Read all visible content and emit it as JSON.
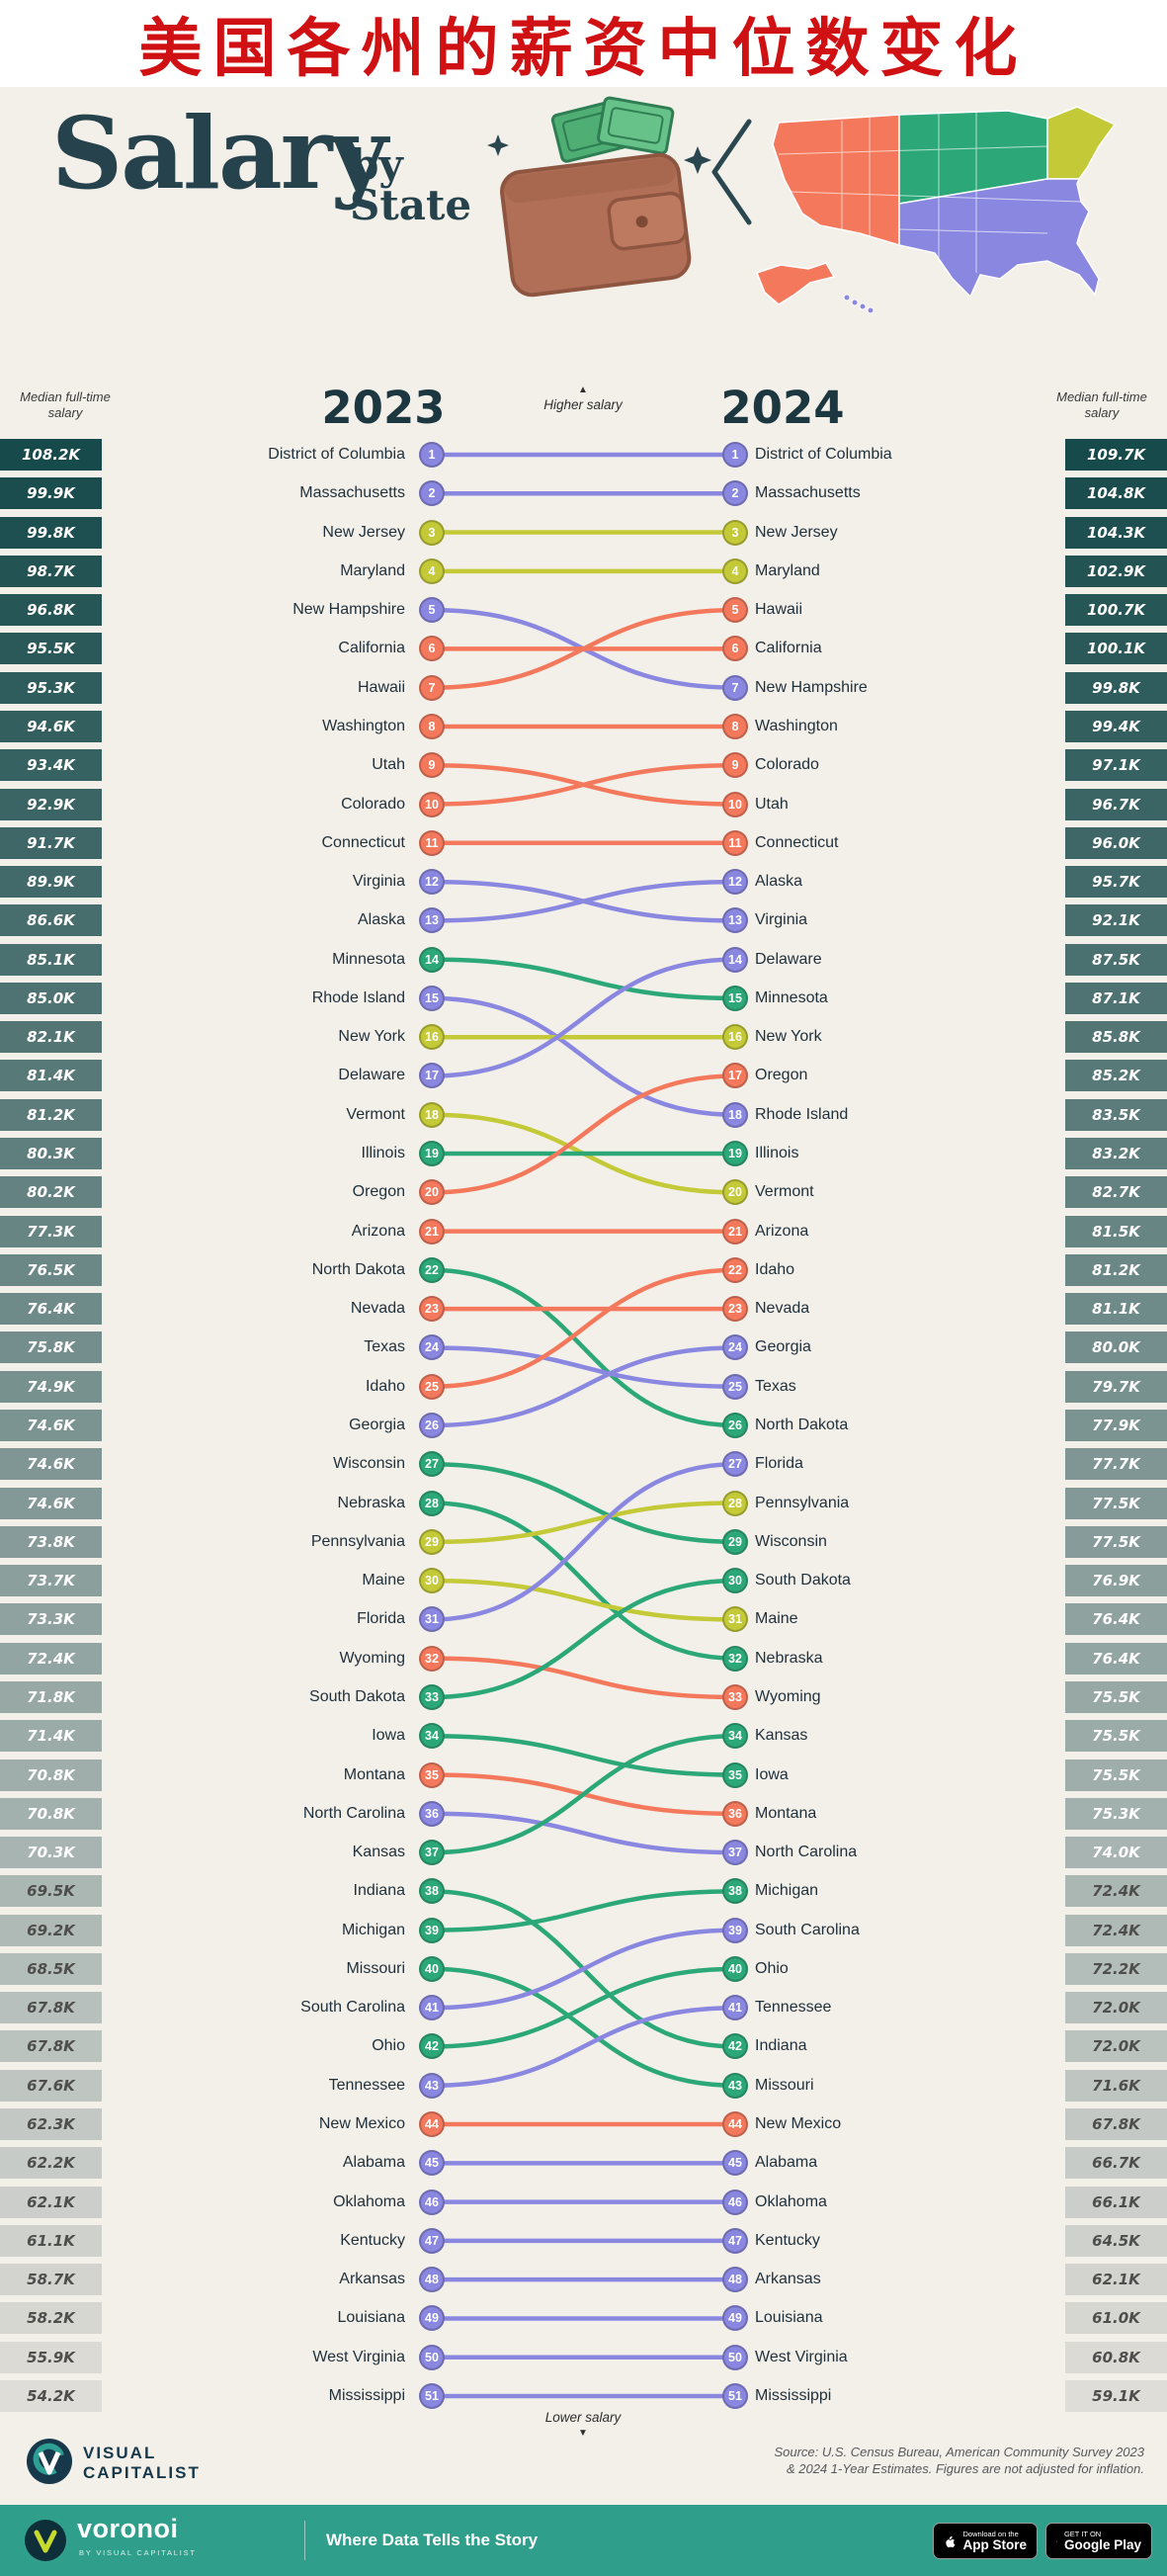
{
  "banner": {
    "title": "美国各州的薪资中位数变化"
  },
  "header": {
    "title_main": "Salary",
    "title_by": "by",
    "title_state": "State",
    "year_left": "2023",
    "year_right": "2024",
    "left_axis_label": "Median full-time salary",
    "right_axis_label": "Median full-time salary"
  },
  "chart_notes": {
    "higher": "Higher salary",
    "lower": "Lower salary",
    "arrow_up": "▲",
    "arrow_down": "▼"
  },
  "chart_data": {
    "type": "slope-rank",
    "title": "Salary by State",
    "unit": "USD, median full-time salary",
    "columns": [
      "2023",
      "2024"
    ],
    "palette": {
      "purple": "#8a87e0",
      "yellow": "#c3c937",
      "green": "#2ca878",
      "coral": "#f4795c"
    },
    "box_gradient": {
      "high": "#174a4b",
      "low": "#dfddd8"
    },
    "box_text": {
      "on_dark": "#ffffff",
      "on_light": "#4e4e4c"
    },
    "states": [
      {
        "name": "District of Columbia",
        "rank_2023": 1,
        "salary_2023": "108.2K",
        "rank_2024": 1,
        "salary_2024": "109.7K",
        "group": "purple"
      },
      {
        "name": "Massachusetts",
        "rank_2023": 2,
        "salary_2023": "99.9K",
        "rank_2024": 2,
        "salary_2024": "104.8K",
        "group": "purple"
      },
      {
        "name": "New Jersey",
        "rank_2023": 3,
        "salary_2023": "99.8K",
        "rank_2024": 3,
        "salary_2024": "104.3K",
        "group": "yellow"
      },
      {
        "name": "Maryland",
        "rank_2023": 4,
        "salary_2023": "98.7K",
        "rank_2024": 4,
        "salary_2024": "102.9K",
        "group": "yellow"
      },
      {
        "name": "New Hampshire",
        "rank_2023": 5,
        "salary_2023": "96.8K",
        "rank_2024": 7,
        "salary_2024": "99.8K",
        "group": "purple"
      },
      {
        "name": "California",
        "rank_2023": 6,
        "salary_2023": "95.5K",
        "rank_2024": 6,
        "salary_2024": "100.1K",
        "group": "coral"
      },
      {
        "name": "Hawaii",
        "rank_2023": 7,
        "salary_2023": "95.3K",
        "rank_2024": 5,
        "salary_2024": "100.7K",
        "group": "coral"
      },
      {
        "name": "Washington",
        "rank_2023": 8,
        "salary_2023": "94.6K",
        "rank_2024": 8,
        "salary_2024": "99.4K",
        "group": "coral"
      },
      {
        "name": "Utah",
        "rank_2023": 9,
        "salary_2023": "93.4K",
        "rank_2024": 10,
        "salary_2024": "96.7K",
        "group": "coral"
      },
      {
        "name": "Colorado",
        "rank_2023": 10,
        "salary_2023": "92.9K",
        "rank_2024": 9,
        "salary_2024": "97.1K",
        "group": "coral"
      },
      {
        "name": "Connecticut",
        "rank_2023": 11,
        "salary_2023": "91.7K",
        "rank_2024": 11,
        "salary_2024": "96.0K",
        "group": "coral"
      },
      {
        "name": "Virginia",
        "rank_2023": 12,
        "salary_2023": "89.9K",
        "rank_2024": 13,
        "salary_2024": "92.1K",
        "group": "purple"
      },
      {
        "name": "Alaska",
        "rank_2023": 13,
        "salary_2023": "86.6K",
        "rank_2024": 12,
        "salary_2024": "95.7K",
        "group": "purple"
      },
      {
        "name": "Minnesota",
        "rank_2023": 14,
        "salary_2023": "85.1K",
        "rank_2024": 15,
        "salary_2024": "87.1K",
        "group": "green"
      },
      {
        "name": "Rhode Island",
        "rank_2023": 15,
        "salary_2023": "85.0K",
        "rank_2024": 18,
        "salary_2024": "83.5K",
        "group": "purple"
      },
      {
        "name": "New York",
        "rank_2023": 16,
        "salary_2023": "82.1K",
        "rank_2024": 16,
        "salary_2024": "85.8K",
        "group": "yellow"
      },
      {
        "name": "Delaware",
        "rank_2023": 17,
        "salary_2023": "81.4K",
        "rank_2024": 14,
        "salary_2024": "87.5K",
        "group": "purple"
      },
      {
        "name": "Vermont",
        "rank_2023": 18,
        "salary_2023": "81.2K",
        "rank_2024": 20,
        "salary_2024": "82.7K",
        "group": "yellow"
      },
      {
        "name": "Illinois",
        "rank_2023": 19,
        "salary_2023": "80.3K",
        "rank_2024": 19,
        "salary_2024": "83.2K",
        "group": "green"
      },
      {
        "name": "Oregon",
        "rank_2023": 20,
        "salary_2023": "80.2K",
        "rank_2024": 17,
        "salary_2024": "85.2K",
        "group": "coral"
      },
      {
        "name": "Arizona",
        "rank_2023": 21,
        "salary_2023": "77.3K",
        "rank_2024": 21,
        "salary_2024": "81.5K",
        "group": "coral"
      },
      {
        "name": "North Dakota",
        "rank_2023": 22,
        "salary_2023": "76.5K",
        "rank_2024": 26,
        "salary_2024": "77.9K",
        "group": "green"
      },
      {
        "name": "Nevada",
        "rank_2023": 23,
        "salary_2023": "76.4K",
        "rank_2024": 23,
        "salary_2024": "81.1K",
        "group": "coral"
      },
      {
        "name": "Texas",
        "rank_2023": 24,
        "salary_2023": "75.8K",
        "rank_2024": 25,
        "salary_2024": "79.7K",
        "group": "purple"
      },
      {
        "name": "Idaho",
        "rank_2023": 25,
        "salary_2023": "74.9K",
        "rank_2024": 22,
        "salary_2024": "81.2K",
        "group": "coral"
      },
      {
        "name": "Georgia",
        "rank_2023": 26,
        "salary_2023": "74.6K",
        "rank_2024": 24,
        "salary_2024": "80.0K",
        "group": "purple"
      },
      {
        "name": "Wisconsin",
        "rank_2023": 27,
        "salary_2023": "74.6K",
        "rank_2024": 29,
        "salary_2024": "77.5K",
        "group": "green"
      },
      {
        "name": "Nebraska",
        "rank_2023": 28,
        "salary_2023": "74.6K",
        "rank_2024": 32,
        "salary_2024": "76.4K",
        "group": "green"
      },
      {
        "name": "Pennsylvania",
        "rank_2023": 29,
        "salary_2023": "73.8K",
        "rank_2024": 28,
        "salary_2024": "77.5K",
        "group": "yellow"
      },
      {
        "name": "Maine",
        "rank_2023": 30,
        "salary_2023": "73.7K",
        "rank_2024": 31,
        "salary_2024": "76.4K",
        "group": "yellow"
      },
      {
        "name": "Florida",
        "rank_2023": 31,
        "salary_2023": "73.3K",
        "rank_2024": 27,
        "salary_2024": "77.7K",
        "group": "purple"
      },
      {
        "name": "Wyoming",
        "rank_2023": 32,
        "salary_2023": "72.4K",
        "rank_2024": 33,
        "salary_2024": "75.5K",
        "group": "coral"
      },
      {
        "name": "South Dakota",
        "rank_2023": 33,
        "salary_2023": "71.8K",
        "rank_2024": 30,
        "salary_2024": "76.9K",
        "group": "green"
      },
      {
        "name": "Iowa",
        "rank_2023": 34,
        "salary_2023": "71.4K",
        "rank_2024": 35,
        "salary_2024": "75.5K",
        "group": "green"
      },
      {
        "name": "Montana",
        "rank_2023": 35,
        "salary_2023": "70.8K",
        "rank_2024": 36,
        "salary_2024": "75.3K",
        "group": "coral"
      },
      {
        "name": "North Carolina",
        "rank_2023": 36,
        "salary_2023": "70.8K",
        "rank_2024": 37,
        "salary_2024": "74.0K",
        "group": "purple"
      },
      {
        "name": "Kansas",
        "rank_2023": 37,
        "salary_2023": "70.3K",
        "rank_2024": 34,
        "salary_2024": "75.5K",
        "group": "green"
      },
      {
        "name": "Indiana",
        "rank_2023": 38,
        "salary_2023": "69.5K",
        "rank_2024": 42,
        "salary_2024": "72.0K",
        "group": "green"
      },
      {
        "name": "Michigan",
        "rank_2023": 39,
        "salary_2023": "69.2K",
        "rank_2024": 38,
        "salary_2024": "72.4K",
        "group": "green"
      },
      {
        "name": "Missouri",
        "rank_2023": 40,
        "salary_2023": "68.5K",
        "rank_2024": 43,
        "salary_2024": "71.6K",
        "group": "green"
      },
      {
        "name": "South Carolina",
        "rank_2023": 41,
        "salary_2023": "67.8K",
        "rank_2024": 39,
        "salary_2024": "72.4K",
        "group": "purple"
      },
      {
        "name": "Ohio",
        "rank_2023": 42,
        "salary_2023": "67.8K",
        "rank_2024": 40,
        "salary_2024": "72.2K",
        "group": "green"
      },
      {
        "name": "Tennessee",
        "rank_2023": 43,
        "salary_2023": "67.6K",
        "rank_2024": 41,
        "salary_2024": "72.0K",
        "group": "purple"
      },
      {
        "name": "New Mexico",
        "rank_2023": 44,
        "salary_2023": "62.3K",
        "rank_2024": 44,
        "salary_2024": "67.8K",
        "group": "coral"
      },
      {
        "name": "Alabama",
        "rank_2023": 45,
        "salary_2023": "62.2K",
        "rank_2024": 45,
        "salary_2024": "66.7K",
        "group": "purple"
      },
      {
        "name": "Oklahoma",
        "rank_2023": 46,
        "salary_2023": "62.1K",
        "rank_2024": 46,
        "salary_2024": "66.1K",
        "group": "purple"
      },
      {
        "name": "Kentucky",
        "rank_2023": 47,
        "salary_2023": "61.1K",
        "rank_2024": 47,
        "salary_2024": "64.5K",
        "group": "purple"
      },
      {
        "name": "Arkansas",
        "rank_2023": 48,
        "salary_2023": "58.7K",
        "rank_2024": 48,
        "salary_2024": "62.1K",
        "group": "purple"
      },
      {
        "name": "Louisiana",
        "rank_2023": 49,
        "salary_2023": "58.2K",
        "rank_2024": 49,
        "salary_2024": "61.0K",
        "group": "purple"
      },
      {
        "name": "West Virginia",
        "rank_2023": 50,
        "salary_2023": "55.9K",
        "rank_2024": 50,
        "salary_2024": "60.8K",
        "group": "purple"
      },
      {
        "name": "Mississippi",
        "rank_2023": 51,
        "salary_2023": "54.2K",
        "rank_2024": 51,
        "salary_2024": "59.1K",
        "group": "purple"
      }
    ]
  },
  "footer": {
    "logo_line1": "VISUAL",
    "logo_line2": "CAPITALIST",
    "source_line1": "Source: U.S. Census Bureau, American Community Survey 2023",
    "source_line2": "& 2024 1-Year Estimates. Figures are not adjusted for inflation."
  },
  "bottombar": {
    "brand": "voronoi",
    "brand_sub": "BY VISUAL CAPITALIST",
    "tagline": "Where Data Tells the Story",
    "appstore_top": "Download on the",
    "appstore_bottom": "App Store",
    "googleplay_top": "GET IT ON",
    "googleplay_bottom": "Google Play"
  }
}
